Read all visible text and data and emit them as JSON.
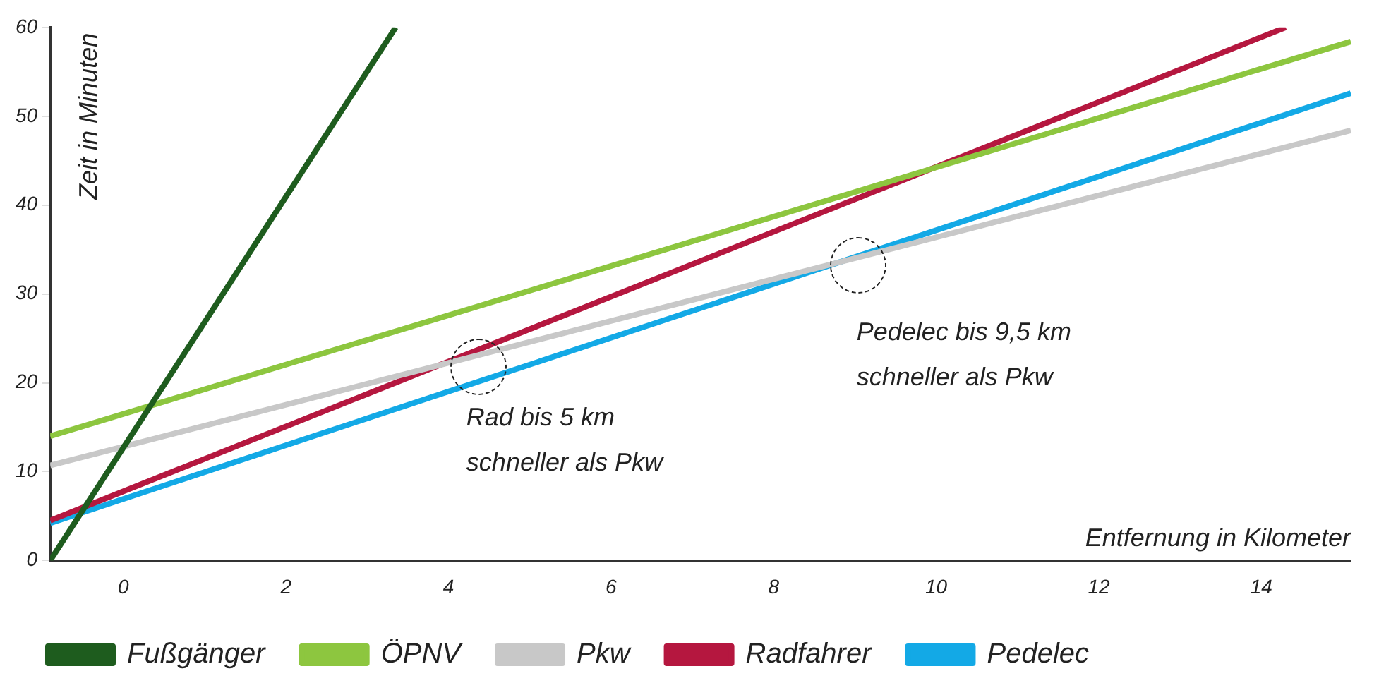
{
  "chart_data": {
    "type": "line",
    "xlabel": "Entfernung in Kilometer",
    "ylabel": "Zeit in Minuten",
    "xlim": [
      -0.9,
      15.1
    ],
    "ylim": [
      0,
      60
    ],
    "xticks": [
      0,
      2,
      4,
      6,
      8,
      10,
      12,
      14
    ],
    "yticks": [
      0,
      10,
      20,
      30,
      40,
      50,
      60
    ],
    "grid": false,
    "legend": "bottom",
    "marker": "none",
    "line_style": "solid",
    "series": [
      {
        "name": "Fußgänger",
        "color": "#1e5c1e",
        "x": [
          -0.9,
          3.35
        ],
        "values": [
          0,
          60
        ]
      },
      {
        "name": "ÖPNV",
        "color": "#8dc63f",
        "x": [
          -0.9,
          15.1
        ],
        "values": [
          14,
          58.4
        ]
      },
      {
        "name": "Pkw",
        "color": "#c8c8c8",
        "x": [
          -0.9,
          15.1
        ],
        "values": [
          10.7,
          48.4
        ]
      },
      {
        "name": "Radfahrer",
        "color": "#b5173f",
        "x": [
          -0.9,
          14.3
        ],
        "values": [
          4.5,
          60
        ]
      },
      {
        "name": "Pedelec",
        "color": "#13a9e6",
        "x": [
          -0.9,
          15.1
        ],
        "values": [
          4.2,
          52.6
        ]
      }
    ],
    "annotations": [
      "Rad bis 5 km\nschneller als Pkw",
      "Pedelec bis 9,5 km\nschneller als Pkw"
    ]
  }
}
